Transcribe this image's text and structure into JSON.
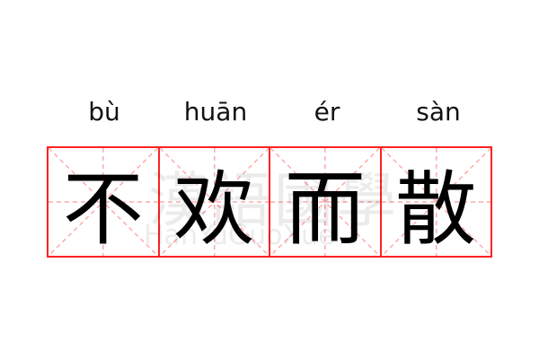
{
  "colors": {
    "grid": "#ff2222",
    "guide": "#ffaaaa",
    "text": "#000000"
  },
  "characters": [
    {
      "hanzi": "不",
      "pinyin": "bù"
    },
    {
      "hanzi": "欢",
      "pinyin": "huān"
    },
    {
      "hanzi": "而",
      "pinyin": "ér"
    },
    {
      "hanzi": "散",
      "pinyin": "sàn"
    }
  ],
  "watermark": {
    "hanzi": "漢語國學",
    "latin": "HanYuGuoXue"
  }
}
